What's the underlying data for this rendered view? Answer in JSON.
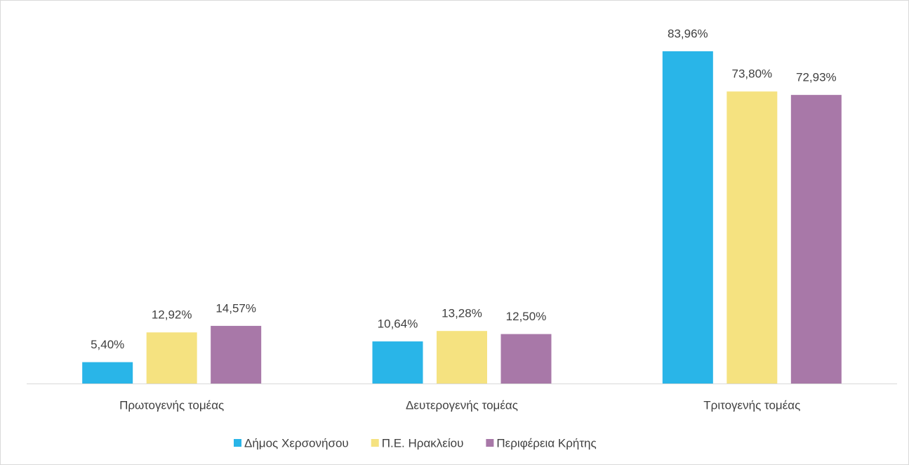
{
  "chart_data": {
    "type": "bar",
    "categories": [
      "Πρωτογενής τομέας",
      "Δευτερογενής τομέας",
      "Τριτογενής τομέας"
    ],
    "series": [
      {
        "name": "Δήμος Χερσονήσου",
        "color": "#29b5e8",
        "values": [
          5.4,
          10.64,
          83.96
        ],
        "value_labels": [
          "5,40%",
          "10,64%",
          "83,96%"
        ]
      },
      {
        "name": "Π.Ε. Ηρακλείου",
        "color": "#f5e280",
        "values": [
          12.92,
          13.28,
          73.8
        ],
        "value_labels": [
          "12,92%",
          "13,28%",
          "73,80%"
        ]
      },
      {
        "name": "Περιφέρεια Κρήτης",
        "color": "#a878a8",
        "values": [
          14.57,
          12.5,
          72.93
        ],
        "value_labels": [
          "14,57%",
          "12,50%",
          "72,93%"
        ]
      }
    ],
    "legend": "bottom"
  }
}
